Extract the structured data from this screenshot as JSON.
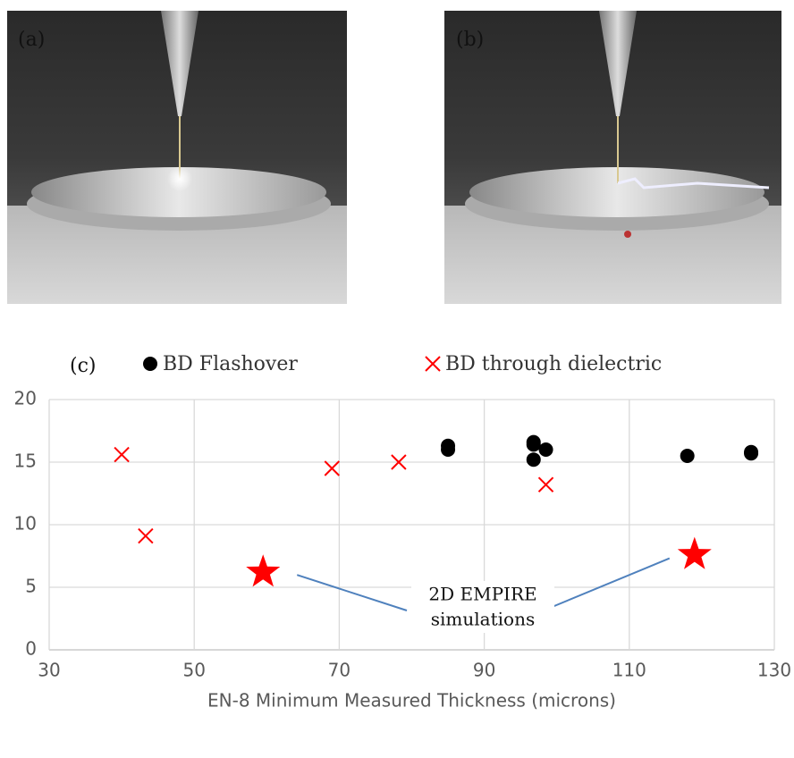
{
  "panels": {
    "a": "(a)",
    "b": "(b)"
  },
  "chart_data": {
    "type": "scatter",
    "panel_label": "(c)",
    "x_label": "EN-8 Minimum Measured Thickness (microns)",
    "xlim": [
      30,
      130
    ],
    "xticks": [
      30,
      50,
      70,
      90,
      110,
      130
    ],
    "ylim": [
      0,
      20
    ],
    "yticks": [
      0,
      5,
      10,
      15,
      20
    ],
    "grid": true,
    "series": [
      {
        "name": "BD Flashover",
        "color": "#000000",
        "marker": "circle",
        "x": [
          85,
          85,
          96.8,
          96.8,
          96.8,
          98.5,
          118,
          126.8,
          126.8
        ],
        "values": [
          16.3,
          16.0,
          16.6,
          16.4,
          15.2,
          16.0,
          15.5,
          15.8,
          15.7
        ]
      },
      {
        "name": "BD through dielectric",
        "color": "#ff0000",
        "marker": "x",
        "x": [
          40,
          43.3,
          69,
          78.2,
          98.5
        ],
        "values": [
          15.6,
          9.1,
          14.5,
          15.0,
          13.2
        ]
      }
    ],
    "annotation": {
      "text": [
        "2D EMPIRE",
        "simulations"
      ],
      "color": "#ff0000",
      "points": {
        "x": [
          59.5,
          119
        ],
        "y": [
          6.2,
          7.6
        ]
      }
    }
  }
}
